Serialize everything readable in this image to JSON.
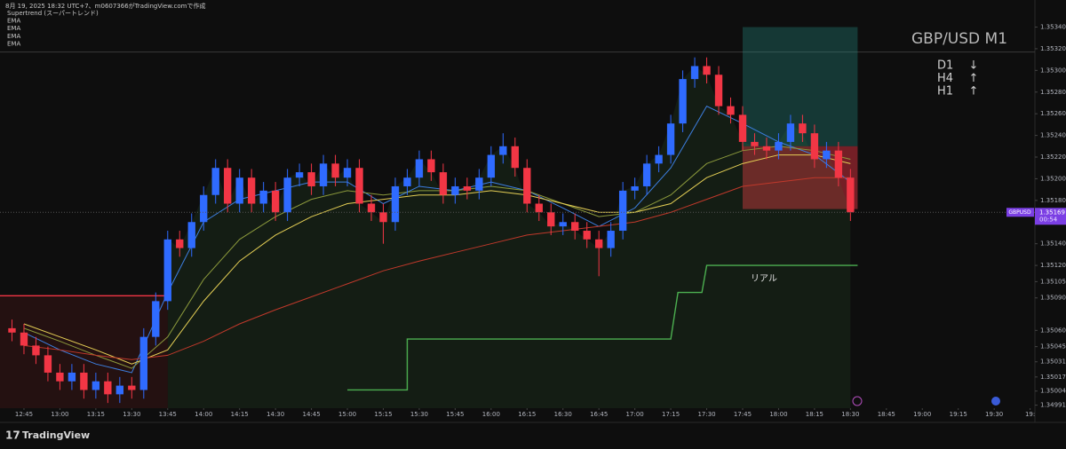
{
  "chart_data": {
    "type": "candlestick",
    "title": "GBP/USD M1",
    "caption": "8月 19, 2025 18:32 UTC+7、m0607366がTradingView.comで作成",
    "symbol": "GBPUSD",
    "last_price": 1.35169,
    "countdown": "00:54",
    "annotation": "リアル",
    "up_color": "#2f6bff",
    "down_color": "#f23645",
    "xlim": [
      "12:35",
      "19:47"
    ],
    "ylim": [
      1.3498,
      1.35365
    ],
    "xticks": [
      "12:45",
      "13:00",
      "13:15",
      "13:30",
      "13:45",
      "14:00",
      "14:15",
      "14:30",
      "14:45",
      "15:00",
      "15:15",
      "15:30",
      "15:45",
      "16:00",
      "16:15",
      "16:30",
      "16:45",
      "17:00",
      "17:15",
      "17:30",
      "17:45",
      "18:00",
      "18:15",
      "18:30",
      "18:45",
      "19:00",
      "19:15",
      "19:30",
      {
        "value": "19:45",
        "label": "19:"
      }
    ],
    "yticks": [
      {
        "value": 1.3534,
        "label": "1.35340"
      },
      {
        "value": 1.3532,
        "label": "1.35320"
      },
      {
        "value": 1.353,
        "label": "1.35300"
      },
      {
        "value": 1.3528,
        "label": "1.35280"
      },
      {
        "value": 1.3526,
        "label": "1.35260"
      },
      {
        "value": 1.3524,
        "label": "1.35240"
      },
      {
        "value": 1.3522,
        "label": "1.35220"
      },
      {
        "value": 1.352,
        "label": "1.35200"
      },
      {
        "value": 1.3518,
        "label": "1.35180"
      },
      {
        "value": 1.3514,
        "label": "1.35140"
      },
      {
        "value": 1.3512,
        "label": "1.35120"
      },
      1.35105,
      {
        "value": 1.3509,
        "label": "1.35090"
      },
      {
        "value": 1.3506,
        "label": "1.35060"
      },
      1.35045,
      1.35031,
      1.35017,
      1.35004,
      1.34991
    ],
    "x": [
      "12:40",
      "12:45",
      "12:50",
      "12:55",
      "13:00",
      "13:05",
      "13:10",
      "13:15",
      "13:20",
      "13:25",
      "13:30",
      "13:35",
      "13:40",
      "13:45",
      "13:50",
      "13:55",
      "14:00",
      "14:05",
      "14:10",
      "14:15",
      "14:20",
      "14:25",
      "14:30",
      "14:35",
      "14:40",
      "14:45",
      "14:50",
      "14:55",
      "15:00",
      "15:05",
      "15:10",
      "15:15",
      "15:20",
      "15:25",
      "15:30",
      "15:35",
      "15:40",
      "15:45",
      "15:50",
      "15:55",
      "16:00",
      "16:05",
      "16:10",
      "16:15",
      "16:20",
      "16:25",
      "16:30",
      "16:35",
      "16:40",
      "16:45",
      "16:50",
      "16:55",
      "17:00",
      "17:05",
      "17:10",
      "17:15",
      "17:20",
      "17:25",
      "17:30",
      "17:35",
      "17:40",
      "17:45",
      "17:50",
      "17:55",
      "18:00",
      "18:05",
      "18:10",
      "18:15",
      "18:20",
      "18:25",
      "18:30"
    ],
    "open": [
      1.35062,
      1.35058,
      1.35046,
      1.35037,
      1.35021,
      1.35013,
      1.35021,
      1.35005,
      1.35013,
      1.35001,
      1.35009,
      1.35005,
      1.35054,
      1.35087,
      1.35144,
      1.35136,
      1.3516,
      1.35185,
      1.3521,
      1.35177,
      1.35201,
      1.35177,
      1.35189,
      1.35169,
      1.35201,
      1.35206,
      1.35193,
      1.35214,
      1.35201,
      1.3521,
      1.35177,
      1.35169,
      1.3516,
      1.35193,
      1.35201,
      1.35218,
      1.35206,
      1.35185,
      1.35193,
      1.35189,
      1.35201,
      1.35222,
      1.3523,
      1.3521,
      1.35177,
      1.35169,
      1.35156,
      1.3516,
      1.35152,
      1.35144,
      1.35136,
      1.35152,
      1.35189,
      1.35193,
      1.35214,
      1.35222,
      1.35251,
      1.35292,
      1.35304,
      1.35296,
      1.35267,
      1.35259,
      1.35234,
      1.3523,
      1.35226,
      1.35234,
      1.35251,
      1.35242,
      1.35218,
      1.35226,
      1.35201
    ],
    "high": [
      1.3507,
      1.35066,
      1.35054,
      1.35045,
      1.35029,
      1.35029,
      1.35029,
      1.35021,
      1.35021,
      1.35017,
      1.35017,
      1.35062,
      1.35095,
      1.35152,
      1.35152,
      1.35168,
      1.35193,
      1.35218,
      1.35218,
      1.35209,
      1.35209,
      1.35197,
      1.35197,
      1.35209,
      1.35214,
      1.35214,
      1.35222,
      1.35222,
      1.35218,
      1.35218,
      1.35185,
      1.35177,
      1.35201,
      1.35209,
      1.35226,
      1.35226,
      1.35214,
      1.35201,
      1.35201,
      1.35209,
      1.3523,
      1.35242,
      1.35238,
      1.35218,
      1.35185,
      1.35177,
      1.35168,
      1.35168,
      1.3516,
      1.35152,
      1.3516,
      1.35197,
      1.35201,
      1.35222,
      1.3523,
      1.35259,
      1.353,
      1.35312,
      1.35312,
      1.35304,
      1.35275,
      1.35267,
      1.35242,
      1.35238,
      1.35242,
      1.35259,
      1.35259,
      1.3525,
      1.35234,
      1.35234,
      1.35209
    ],
    "low": [
      1.3505,
      1.35038,
      1.35029,
      1.35013,
      1.35005,
      1.35005,
      1.34997,
      1.34997,
      1.34993,
      1.34993,
      1.34997,
      1.34997,
      1.35046,
      1.35079,
      1.35128,
      1.35128,
      1.35152,
      1.35177,
      1.35169,
      1.35169,
      1.35169,
      1.35169,
      1.35161,
      1.35161,
      1.35193,
      1.35185,
      1.35185,
      1.35193,
      1.35193,
      1.35169,
      1.35161,
      1.3514,
      1.35152,
      1.35185,
      1.35193,
      1.35198,
      1.35177,
      1.35177,
      1.35181,
      1.35181,
      1.35193,
      1.35214,
      1.35202,
      1.35169,
      1.35161,
      1.35148,
      1.35148,
      1.35144,
      1.35136,
      1.3511,
      1.35128,
      1.35144,
      1.35181,
      1.35185,
      1.35206,
      1.35214,
      1.35243,
      1.35284,
      1.35288,
      1.35259,
      1.35251,
      1.35226,
      1.35222,
      1.35218,
      1.35218,
      1.35226,
      1.35234,
      1.3521,
      1.3521,
      1.35193,
      1.35161
    ],
    "close": [
      1.35058,
      1.35046,
      1.35037,
      1.35021,
      1.35013,
      1.35021,
      1.35005,
      1.35013,
      1.35001,
      1.35009,
      1.35005,
      1.35054,
      1.35087,
      1.35144,
      1.35136,
      1.3516,
      1.35185,
      1.3521,
      1.35177,
      1.35201,
      1.35177,
      1.35189,
      1.35169,
      1.35201,
      1.35206,
      1.35193,
      1.35214,
      1.35201,
      1.3521,
      1.35177,
      1.35169,
      1.3516,
      1.35193,
      1.35201,
      1.35218,
      1.35206,
      1.35185,
      1.35193,
      1.35189,
      1.35201,
      1.35222,
      1.3523,
      1.3521,
      1.35177,
      1.35169,
      1.35156,
      1.3516,
      1.35152,
      1.35144,
      1.35136,
      1.35152,
      1.35189,
      1.35193,
      1.35214,
      1.35222,
      1.35251,
      1.35292,
      1.35304,
      1.35296,
      1.35267,
      1.35259,
      1.35234,
      1.3523,
      1.35226,
      1.35234,
      1.35251,
      1.35242,
      1.35218,
      1.35226,
      1.35201,
      1.35169
    ],
    "series": [
      {
        "name": "Supertrend (スーパートレンド)",
        "color": "#4caf50",
        "x": [
          "15:00",
          "15:25",
          "15:25",
          "17:15",
          "17:18",
          "17:28",
          "17:30",
          "18:33"
        ],
        "values": [
          1.35005,
          1.35005,
          1.35052,
          1.35052,
          1.35095,
          1.35095,
          1.3512,
          1.3512
        ]
      },
      {
        "color": "#f23645",
        "x": [
          "12:35",
          "13:45"
        ],
        "values": [
          1.35092,
          1.35092
        ]
      },
      {
        "name": "EMA",
        "color": "#3d7fe0",
        "x": [
          "12:45",
          "13:00",
          "13:15",
          "13:30",
          "13:45",
          "14:00",
          "14:15",
          "14:30",
          "14:45",
          "15:00",
          "15:15",
          "15:30",
          "15:45",
          "16:00",
          "16:15",
          "16:30",
          "16:45",
          "17:00",
          "17:15",
          "17:30",
          "17:45",
          "18:00",
          "18:15",
          "18:30"
        ],
        "values": [
          1.35058,
          1.35042,
          1.35029,
          1.35021,
          1.35095,
          1.3516,
          1.35181,
          1.35189,
          1.35197,
          1.35197,
          1.35177,
          1.35193,
          1.35189,
          1.35197,
          1.35189,
          1.35173,
          1.35156,
          1.35173,
          1.3521,
          1.35267,
          1.35251,
          1.35234,
          1.35222,
          1.35197
        ]
      },
      {
        "name": "EMA",
        "color": "#8c9a3c",
        "x": [
          "12:45",
          "13:00",
          "13:15",
          "13:30",
          "13:45",
          "14:00",
          "14:15",
          "14:30",
          "14:45",
          "15:00",
          "15:15",
          "15:30",
          "15:45",
          "16:00",
          "16:15",
          "16:30",
          "16:45",
          "17:00",
          "17:15",
          "17:30",
          "17:45",
          "18:00",
          "18:15",
          "18:30"
        ],
        "values": [
          1.35062,
          1.3505,
          1.35037,
          1.35025,
          1.35054,
          1.35107,
          1.35144,
          1.35165,
          1.35181,
          1.35189,
          1.35185,
          1.35189,
          1.35189,
          1.35193,
          1.35189,
          1.35177,
          1.35165,
          1.35169,
          1.35185,
          1.35214,
          1.35226,
          1.3523,
          1.35226,
          1.35218
        ]
      },
      {
        "name": "EMA",
        "color": "#e5cf55",
        "x": [
          "12:45",
          "13:00",
          "13:15",
          "13:30",
          "13:45",
          "14:00",
          "14:15",
          "14:30",
          "14:45",
          "15:00",
          "15:15",
          "15:30",
          "15:45",
          "16:00",
          "16:15",
          "16:30",
          "16:45",
          "17:00",
          "17:15",
          "17:30",
          "17:45",
          "18:00",
          "18:15",
          "18:30"
        ],
        "values": [
          1.35066,
          1.35054,
          1.35042,
          1.35029,
          1.35042,
          1.35087,
          1.35124,
          1.35148,
          1.35165,
          1.35177,
          1.35181,
          1.35185,
          1.35185,
          1.35189,
          1.35185,
          1.35177,
          1.35169,
          1.35169,
          1.35177,
          1.35201,
          1.35214,
          1.35222,
          1.35222,
          1.35214
        ]
      },
      {
        "name": "EMA",
        "color": "#c0392b",
        "x": [
          "12:45",
          "13:00",
          "13:15",
          "13:30",
          "13:45",
          "14:00",
          "14:15",
          "14:30",
          "14:45",
          "15:00",
          "15:15",
          "15:30",
          "15:45",
          "16:00",
          "16:15",
          "16:30",
          "16:45",
          "17:00",
          "17:15",
          "17:30",
          "17:45",
          "18:00",
          "18:15",
          "18:30"
        ],
        "values": [
          1.35046,
          1.35042,
          1.35037,
          1.35033,
          1.35037,
          1.3505,
          1.35066,
          1.35079,
          1.35091,
          1.35103,
          1.35115,
          1.35124,
          1.35132,
          1.3514,
          1.35148,
          1.35152,
          1.35156,
          1.3516,
          1.35169,
          1.35181,
          1.35193,
          1.35197,
          1.35201,
          1.35201
        ]
      }
    ],
    "position": {
      "x": [
        "17:45",
        "18:33"
      ],
      "target": 1.3534,
      "entry": 1.3523,
      "stop": 1.35172
    },
    "horizontal_line": 1.35317,
    "trend": [
      {
        "label": "D1",
        "arrow": "↓"
      },
      {
        "label": "H4",
        "arrow": "↑"
      },
      {
        "label": "H1",
        "arrow": "↑"
      }
    ]
  },
  "footer": {
    "brand": "TradingView"
  }
}
